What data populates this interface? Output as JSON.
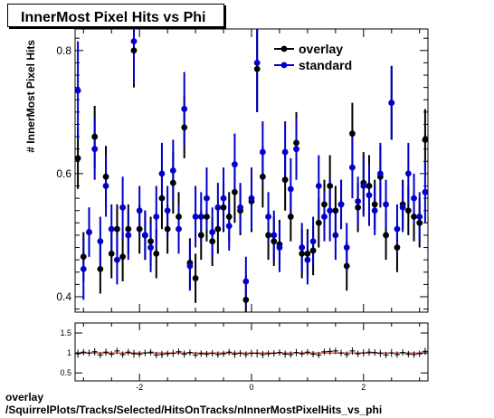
{
  "chart_data": [
    {
      "type": "scatter",
      "title": "InnerMost Pixel Hits vs Phi",
      "ylabel": "# InnerMost Pixel Hits",
      "xlabel": "",
      "xlim": [
        -3.15,
        3.15
      ],
      "ylim": [
        0.375,
        0.835
      ],
      "yticks": [
        0.4,
        0.6,
        0.8
      ],
      "grid": false,
      "legend": {
        "placement": "top-right"
      },
      "x": [
        -3.1,
        -3.0,
        -2.9,
        -2.8,
        -2.7,
        -2.6,
        -2.5,
        -2.4,
        -2.3,
        -2.2,
        -2.1,
        -2.0,
        -1.9,
        -1.8,
        -1.7,
        -1.6,
        -1.5,
        -1.4,
        -1.3,
        -1.2,
        -1.1,
        -1.0,
        -0.9,
        -0.8,
        -0.7,
        -0.6,
        -0.5,
        -0.4,
        -0.3,
        -0.2,
        -0.1,
        0.0,
        0.1,
        0.2,
        0.3,
        0.4,
        0.5,
        0.6,
        0.7,
        0.8,
        0.9,
        1.0,
        1.1,
        1.2,
        1.3,
        1.4,
        1.5,
        1.6,
        1.7,
        1.8,
        1.9,
        2.0,
        2.1,
        2.2,
        2.3,
        2.4,
        2.5,
        2.6,
        2.7,
        2.8,
        2.9,
        3.0,
        3.1
      ],
      "series": [
        {
          "name": "overlay",
          "color": "#000000",
          "values": [
            0.625,
            0.465,
            0.505,
            0.66,
            0.445,
            0.595,
            0.47,
            0.51,
            0.465,
            0.51,
            0.8,
            0.51,
            0.5,
            0.49,
            0.47,
            0.56,
            0.51,
            0.585,
            0.53,
            0.675,
            0.455,
            0.43,
            0.5,
            0.53,
            0.49,
            0.51,
            0.545,
            0.53,
            0.57,
            0.54,
            0.395,
            0.555,
            0.77,
            0.595,
            0.5,
            0.49,
            0.485,
            0.59,
            0.53,
            0.65,
            0.47,
            0.47,
            0.475,
            0.52,
            0.55,
            0.58,
            0.54,
            0.55,
            0.45,
            0.665,
            0.545,
            0.585,
            0.58,
            0.55,
            0.595,
            0.5,
            0.715,
            0.48,
            0.55,
            0.54,
            0.53,
            0.52,
            0.655
          ],
          "err": [
            0.05,
            0.04,
            0.04,
            0.05,
            0.04,
            0.05,
            0.04,
            0.04,
            0.04,
            0.04,
            0.06,
            0.04,
            0.04,
            0.04,
            0.04,
            0.05,
            0.04,
            0.05,
            0.04,
            0.05,
            0.04,
            0.04,
            0.04,
            0.04,
            0.04,
            0.04,
            0.04,
            0.04,
            0.05,
            0.04,
            0.04,
            0.05,
            0.07,
            0.05,
            0.04,
            0.04,
            0.04,
            0.05,
            0.04,
            0.05,
            0.04,
            0.04,
            0.04,
            0.04,
            0.04,
            0.05,
            0.04,
            0.04,
            0.04,
            0.05,
            0.04,
            0.05,
            0.05,
            0.04,
            0.05,
            0.04,
            0.06,
            0.04,
            0.04,
            0.04,
            0.04,
            0.04,
            0.05
          ]
        },
        {
          "name": "standard",
          "color": "#0000cc",
          "values": [
            0.735,
            0.445,
            0.505,
            0.64,
            0.49,
            0.58,
            0.51,
            0.46,
            0.545,
            0.5,
            0.815,
            0.54,
            0.5,
            0.48,
            0.53,
            0.6,
            0.54,
            0.605,
            0.51,
            0.705,
            0.45,
            0.53,
            0.53,
            0.56,
            0.505,
            0.545,
            0.56,
            0.515,
            0.615,
            0.545,
            0.425,
            0.56,
            0.78,
            0.635,
            0.53,
            0.5,
            0.48,
            0.635,
            0.575,
            0.64,
            0.48,
            0.46,
            0.49,
            0.58,
            0.53,
            0.54,
            0.5,
            0.55,
            0.48,
            0.61,
            0.555,
            0.58,
            0.565,
            0.54,
            0.6,
            0.55,
            0.715,
            0.51,
            0.545,
            0.6,
            0.56,
            0.53,
            0.57
          ],
          "err": [
            0.08,
            0.05,
            0.04,
            0.05,
            0.04,
            0.05,
            0.04,
            0.04,
            0.05,
            0.04,
            0.07,
            0.04,
            0.04,
            0.04,
            0.05,
            0.05,
            0.04,
            0.05,
            0.04,
            0.06,
            0.04,
            0.05,
            0.04,
            0.05,
            0.04,
            0.04,
            0.05,
            0.04,
            0.05,
            0.04,
            0.04,
            0.05,
            0.08,
            0.05,
            0.04,
            0.04,
            0.04,
            0.05,
            0.05,
            0.05,
            0.04,
            0.04,
            0.04,
            0.05,
            0.04,
            0.05,
            0.04,
            0.04,
            0.04,
            0.05,
            0.04,
            0.05,
            0.05,
            0.04,
            0.05,
            0.04,
            0.06,
            0.04,
            0.04,
            0.05,
            0.04,
            0.04,
            0.05
          ]
        }
      ]
    },
    {
      "type": "scatter",
      "title": "",
      "xlim": [
        -3.15,
        3.15
      ],
      "ylim": [
        0.3,
        1.75
      ],
      "yticks": [
        0.5,
        1,
        1.5
      ],
      "xticks": [
        -2,
        0,
        2
      ],
      "grid": false,
      "x": [
        -3.1,
        -3.0,
        -2.9,
        -2.8,
        -2.7,
        -2.6,
        -2.5,
        -2.4,
        -2.3,
        -2.2,
        -2.1,
        -2.0,
        -1.9,
        -1.8,
        -1.7,
        -1.6,
        -1.5,
        -1.4,
        -1.3,
        -1.2,
        -1.1,
        -1.0,
        -0.9,
        -0.8,
        -0.7,
        -0.6,
        -0.5,
        -0.4,
        -0.3,
        -0.2,
        -0.1,
        0.0,
        0.1,
        0.2,
        0.3,
        0.4,
        0.5,
        0.6,
        0.7,
        0.8,
        0.9,
        1.0,
        1.1,
        1.2,
        1.3,
        1.4,
        1.5,
        1.6,
        1.7,
        1.8,
        1.9,
        2.0,
        2.1,
        2.2,
        2.3,
        2.4,
        2.5,
        2.6,
        2.7,
        2.8,
        2.9,
        3.0,
        3.1
      ],
      "series": [
        {
          "name": "ratio",
          "color": "#000000",
          "values": [
            0.98,
            1.02,
            1.0,
            1.03,
            0.95,
            1.02,
            0.97,
            1.05,
            0.96,
            1.02,
            0.98,
            0.97,
            1.0,
            1.02,
            0.95,
            0.96,
            0.98,
            0.99,
            1.03,
            0.97,
            1.01,
            0.95,
            0.98,
            0.97,
            0.99,
            0.96,
            0.98,
            1.02,
            0.97,
            0.99,
            0.96,
            0.99,
            0.99,
            0.96,
            0.98,
            0.99,
            1.01,
            0.97,
            0.96,
            1.01,
            0.98,
            1.02,
            0.97,
            0.95,
            1.03,
            1.04,
            1.05,
            1.0,
            0.96,
            1.05,
            0.98,
            1.0,
            1.02,
            1.01,
            0.99,
            0.95,
            1.0,
            0.96,
            1.01,
            0.97,
            0.96,
            0.98,
            1.04
          ],
          "err": [
            0.1,
            0.08,
            0.08,
            0.09,
            0.08,
            0.09,
            0.08,
            0.08,
            0.08,
            0.08,
            0.1,
            0.08,
            0.08,
            0.08,
            0.08,
            0.09,
            0.08,
            0.09,
            0.08,
            0.09,
            0.08,
            0.08,
            0.08,
            0.08,
            0.08,
            0.08,
            0.08,
            0.08,
            0.09,
            0.08,
            0.08,
            0.09,
            0.1,
            0.09,
            0.08,
            0.08,
            0.08,
            0.09,
            0.08,
            0.09,
            0.08,
            0.08,
            0.08,
            0.08,
            0.08,
            0.09,
            0.08,
            0.08,
            0.08,
            0.09,
            0.08,
            0.09,
            0.09,
            0.08,
            0.09,
            0.08,
            0.1,
            0.08,
            0.08,
            0.08,
            0.08,
            0.08,
            0.09
          ]
        }
      ]
    }
  ],
  "footer": {
    "line1": "overlay",
    "line2": "/SquirrelPlots/Tracks/Selected/HitsOnTracks/nInnerMostPixelHits_vs_phi"
  }
}
